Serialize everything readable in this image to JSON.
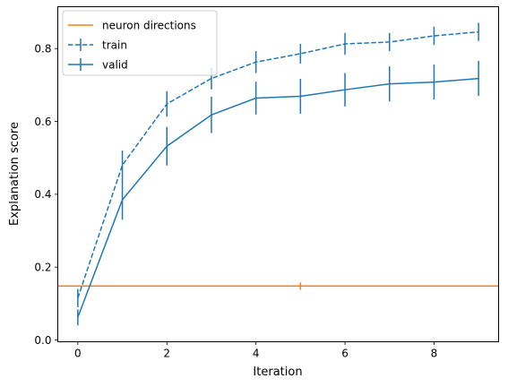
{
  "chart_data": {
    "type": "line",
    "xlabel": "Iteration",
    "ylabel": "Explanation score",
    "xlim": [
      -0.45,
      9.45
    ],
    "ylim": [
      -0.005,
      0.915
    ],
    "x_ticks": [
      0,
      2,
      4,
      6,
      8
    ],
    "x_tick_labels": [
      "0",
      "2",
      "4",
      "6",
      "8"
    ],
    "y_ticks": [
      0.0,
      0.2,
      0.4,
      0.6,
      0.8
    ],
    "y_tick_labels": [
      "0.0",
      "0.2",
      "0.4",
      "0.6",
      "0.8"
    ],
    "grid": false,
    "legend_position": "upper left",
    "reference_line": {
      "name": "neuron directions",
      "value": 0.148,
      "error": 0.01,
      "error_x": 5,
      "color": "#ff7f0e"
    },
    "series": [
      {
        "name": "train",
        "style": "dashed",
        "color": "#1f77b4",
        "x": [
          0,
          1,
          2,
          3,
          4,
          5,
          6,
          7,
          8,
          9
        ],
        "y": [
          0.115,
          0.48,
          0.648,
          0.718,
          0.763,
          0.786,
          0.813,
          0.818,
          0.835,
          0.846
        ],
        "yerr": [
          0.025,
          0.04,
          0.035,
          0.03,
          0.03,
          0.027,
          0.03,
          0.025,
          0.025,
          0.025
        ]
      },
      {
        "name": "valid",
        "style": "solid",
        "color": "#1f77b4",
        "x": [
          0,
          1,
          2,
          3,
          4,
          5,
          6,
          7,
          8,
          9
        ],
        "y": [
          0.062,
          0.385,
          0.532,
          0.618,
          0.664,
          0.669,
          0.687,
          0.703,
          0.708,
          0.718
        ],
        "yerr": [
          0.022,
          0.055,
          0.053,
          0.05,
          0.045,
          0.048,
          0.046,
          0.048,
          0.048,
          0.048
        ]
      }
    ]
  }
}
